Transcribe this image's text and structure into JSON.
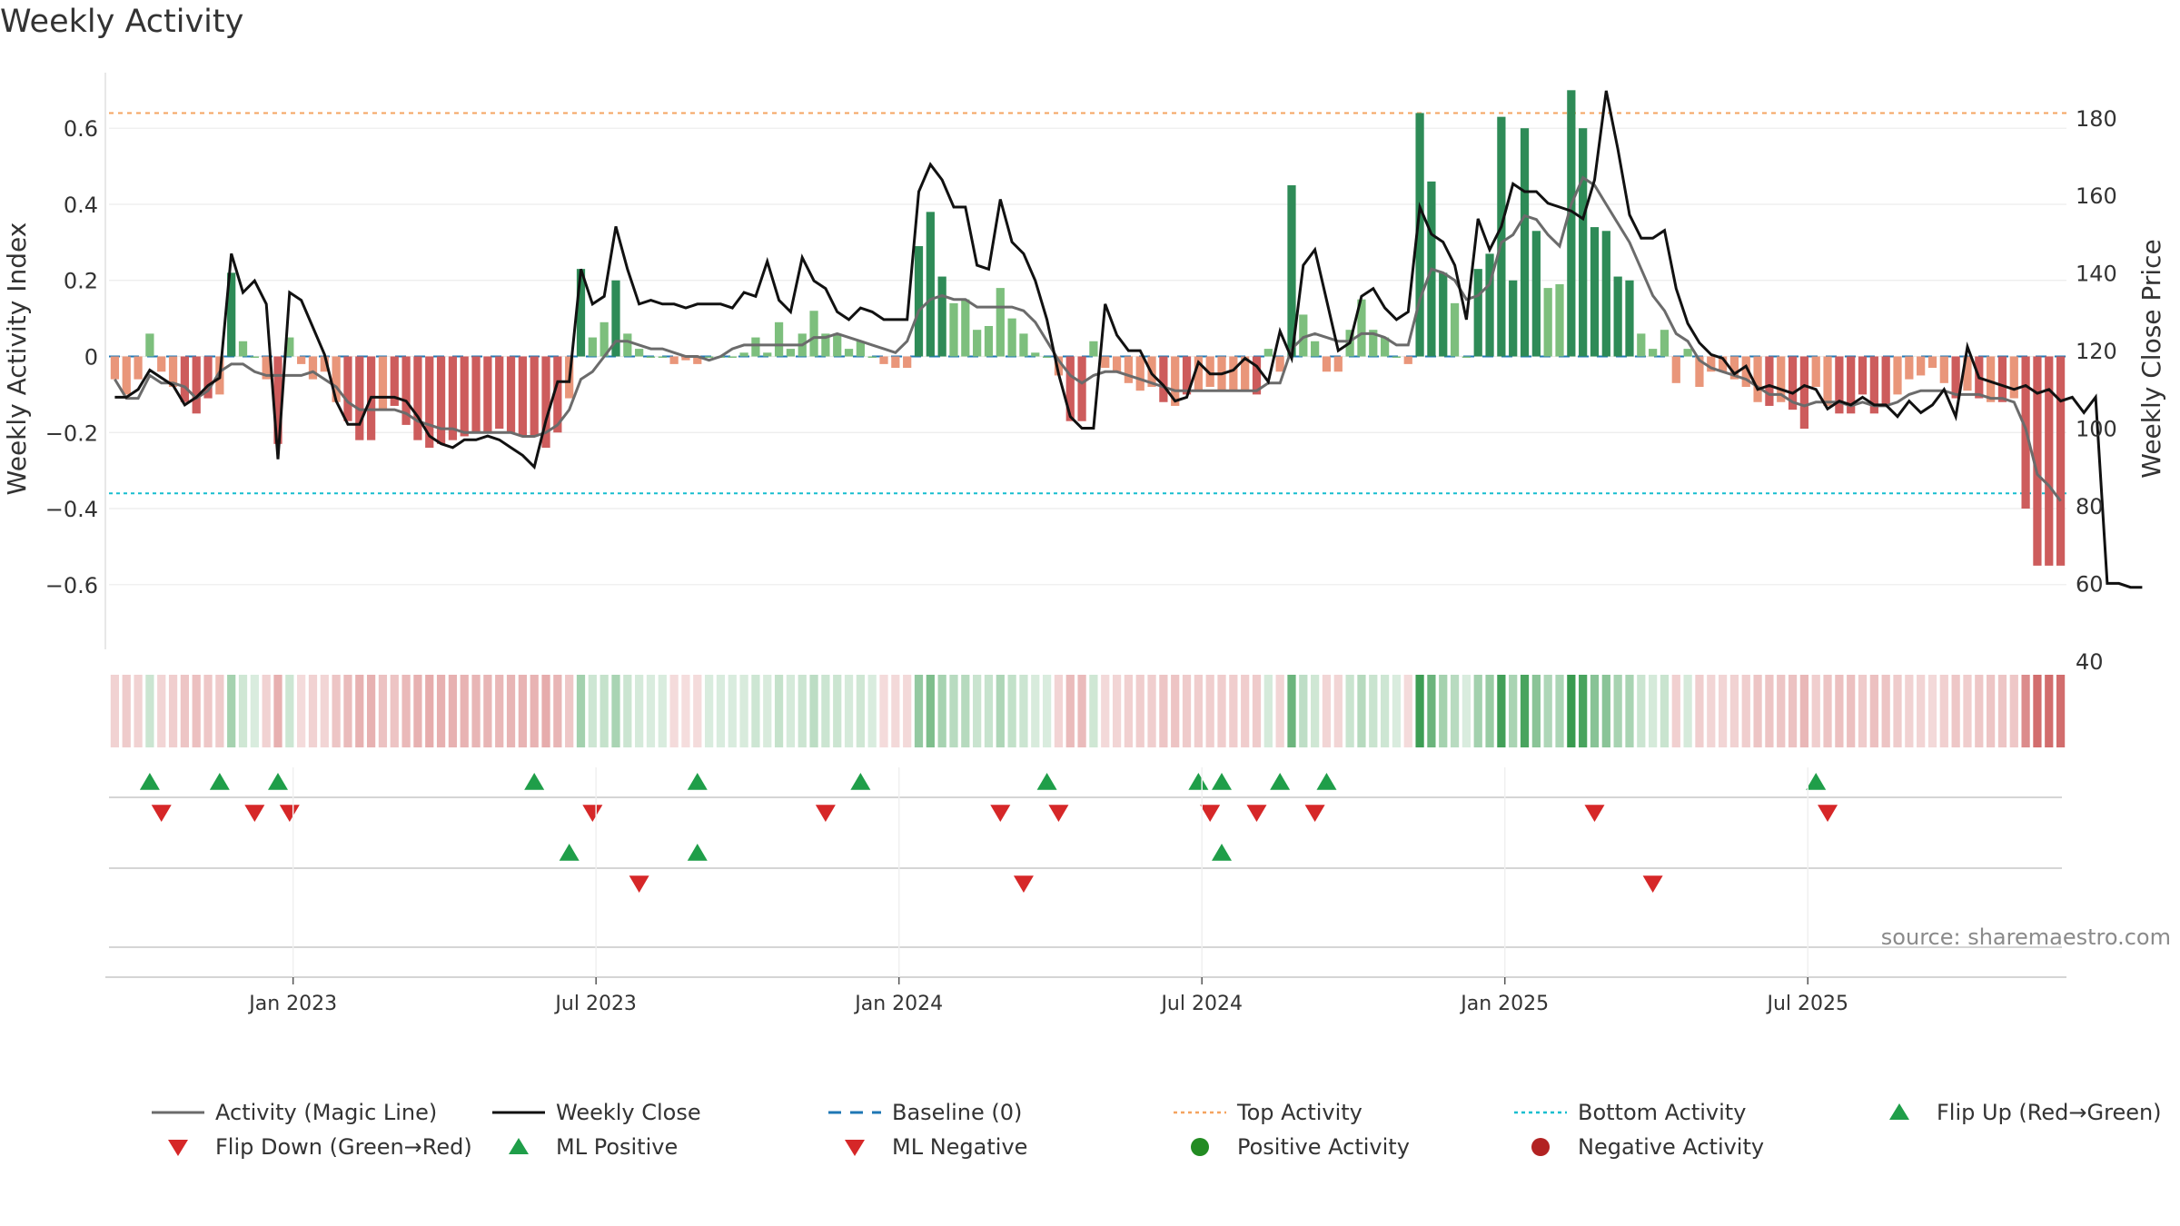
{
  "title": "Weekly Activity",
  "source": "source: sharemaestro.com",
  "colors": {
    "pos_dark": "#2e8b57",
    "pos_light": "#7dbf7d",
    "neg_dark": "#cd5c5c",
    "neg_light": "#e9967a",
    "magic_line": "#6b6b6b",
    "close_line": "#111111",
    "baseline": "#1f77b4",
    "top_line": "#f4a460",
    "bottom_line": "#17becf",
    "flip_up": "#1f9e49",
    "flip_down": "#d62728"
  },
  "chart_data": {
    "type": "bar+line",
    "title": "Weekly Activity",
    "ylabel_left": "Weekly Activity Index",
    "ylabel_right": "Weekly Close Price",
    "ylim_left": [
      -0.77,
      0.77
    ],
    "ylim_right": [
      43,
      194
    ],
    "yticks_left": [
      0.6,
      0.4,
      0.2,
      0,
      -0.2,
      -0.4,
      -0.6
    ],
    "ytick_labels_left": [
      "0.6",
      "0.4",
      "0.2",
      "0",
      "−0.2",
      "−0.4",
      "−0.6"
    ],
    "yticks_right": [
      180,
      160,
      140,
      120,
      100,
      80,
      60,
      40
    ],
    "ytick_labels_right": [
      "180",
      "160",
      "140",
      "120",
      "100",
      "80",
      "60",
      "40"
    ],
    "xtick_labels": [
      "Jan 2023",
      "Jul 2023",
      "Jan 2024",
      "Jul 2024",
      "Jan 2025",
      "Jul 2025"
    ],
    "xtick_weeks": [
      15.3,
      41.3,
      67.3,
      93.3,
      119.3,
      145.3
    ],
    "top_activity": 0.64,
    "bottom_activity": -0.36,
    "activity": [
      -0.06,
      -0.1,
      -0.06,
      0.06,
      -0.04,
      -0.08,
      -0.12,
      -0.15,
      -0.11,
      -0.1,
      0.22,
      0.04,
      0.0,
      -0.06,
      -0.23,
      0.05,
      -0.02,
      -0.06,
      -0.04,
      -0.12,
      -0.17,
      -0.22,
      -0.22,
      -0.14,
      -0.13,
      -0.18,
      -0.22,
      -0.24,
      -0.23,
      -0.22,
      -0.21,
      -0.2,
      -0.2,
      -0.19,
      -0.2,
      -0.21,
      -0.21,
      -0.24,
      -0.2,
      -0.11,
      0.23,
      0.05,
      0.09,
      0.2,
      0.06,
      0.02,
      0.0,
      0.0,
      -0.02,
      -0.01,
      -0.02,
      0.0,
      0.0,
      0.0,
      0.01,
      0.05,
      0.01,
      0.09,
      0.02,
      0.06,
      0.12,
      0.06,
      0.06,
      0.02,
      0.04,
      0.0,
      -0.02,
      -0.03,
      -0.03,
      0.29,
      0.38,
      0.21,
      0.14,
      0.15,
      0.07,
      0.08,
      0.18,
      0.1,
      0.06,
      0.01,
      0.0,
      -0.05,
      -0.17,
      -0.17,
      0.04,
      -0.03,
      -0.04,
      -0.07,
      -0.09,
      -0.08,
      -0.12,
      -0.13,
      -0.1,
      -0.09,
      -0.08,
      -0.09,
      -0.09,
      -0.09,
      -0.1,
      0.02,
      -0.04,
      0.45,
      0.11,
      0.04,
      -0.04,
      -0.04,
      0.07,
      0.15,
      0.07,
      0.05,
      0.0,
      -0.02,
      0.64,
      0.46,
      0.22,
      0.14,
      0.0,
      0.23,
      0.27,
      0.63,
      0.2,
      0.6,
      0.33,
      0.18,
      0.19,
      0.7,
      0.6,
      0.34,
      0.33,
      0.21,
      0.2,
      0.06,
      0.02,
      0.07,
      -0.07,
      0.02,
      -0.08,
      -0.04,
      -0.04,
      -0.06,
      -0.08,
      -0.12,
      -0.13,
      -0.12,
      -0.14,
      -0.19,
      -0.08,
      -0.13,
      -0.15,
      -0.15,
      -0.1,
      -0.15,
      -0.13,
      -0.1,
      -0.06,
      -0.05,
      -0.03,
      -0.07,
      -0.11,
      -0.09,
      -0.11,
      -0.12,
      -0.12,
      -0.11,
      -0.4,
      -0.55,
      -0.55,
      -0.55
    ],
    "magic_line": [
      -0.06,
      -0.11,
      -0.11,
      -0.05,
      -0.07,
      -0.07,
      -0.08,
      -0.11,
      -0.09,
      -0.04,
      -0.02,
      -0.02,
      -0.04,
      -0.05,
      -0.05,
      -0.05,
      -0.05,
      -0.04,
      -0.06,
      -0.08,
      -0.12,
      -0.14,
      -0.14,
      -0.14,
      -0.14,
      -0.15,
      -0.17,
      -0.18,
      -0.19,
      -0.19,
      -0.2,
      -0.2,
      -0.2,
      -0.2,
      -0.2,
      -0.21,
      -0.21,
      -0.2,
      -0.18,
      -0.14,
      -0.06,
      -0.04,
      0.0,
      0.04,
      0.04,
      0.03,
      0.02,
      0.02,
      0.01,
      0.0,
      0.0,
      -0.01,
      0.0,
      0.02,
      0.03,
      0.03,
      0.03,
      0.03,
      0.03,
      0.03,
      0.05,
      0.05,
      0.06,
      0.05,
      0.04,
      0.03,
      0.02,
      0.01,
      0.04,
      0.12,
      0.15,
      0.16,
      0.15,
      0.15,
      0.13,
      0.13,
      0.13,
      0.13,
      0.12,
      0.09,
      0.04,
      -0.01,
      -0.05,
      -0.07,
      -0.05,
      -0.04,
      -0.04,
      -0.05,
      -0.06,
      -0.07,
      -0.08,
      -0.09,
      -0.09,
      -0.09,
      -0.09,
      -0.09,
      -0.09,
      -0.09,
      -0.09,
      -0.07,
      -0.07,
      0.02,
      0.05,
      0.06,
      0.05,
      0.04,
      0.04,
      0.06,
      0.06,
      0.05,
      0.03,
      0.03,
      0.15,
      0.23,
      0.22,
      0.2,
      0.15,
      0.16,
      0.19,
      0.3,
      0.32,
      0.37,
      0.36,
      0.32,
      0.29,
      0.4,
      0.47,
      0.45,
      0.4,
      0.35,
      0.3,
      0.23,
      0.16,
      0.12,
      0.06,
      0.04,
      -0.01,
      -0.03,
      -0.04,
      -0.05,
      -0.06,
      -0.08,
      -0.1,
      -0.1,
      -0.12,
      -0.13,
      -0.12,
      -0.12,
      -0.12,
      -0.13,
      -0.12,
      -0.13,
      -0.13,
      -0.12,
      -0.1,
      -0.09,
      -0.09,
      -0.09,
      -0.1,
      -0.1,
      -0.1,
      -0.11,
      -0.11,
      -0.12,
      -0.19,
      -0.31,
      -0.34,
      -0.38
    ],
    "weekly_close": [
      108,
      108,
      110,
      115,
      113,
      111,
      106,
      108,
      111,
      113,
      145,
      135,
      138,
      132,
      92,
      135,
      133,
      126,
      119,
      107,
      101,
      101,
      108,
      108,
      108,
      107,
      103,
      98,
      96,
      95,
      97,
      97,
      98,
      97,
      95,
      93,
      90,
      102,
      112,
      112,
      141,
      132,
      134,
      152,
      141,
      132,
      133,
      132,
      132,
      131,
      132,
      132,
      132,
      131,
      135,
      134,
      143,
      133,
      130,
      144,
      138,
      136,
      130,
      128,
      131,
      130,
      128,
      128,
      128,
      161,
      168,
      164,
      157,
      157,
      142,
      141,
      159,
      148,
      145,
      138,
      128,
      114,
      103,
      100,
      100,
      132,
      124,
      120,
      120,
      114,
      111,
      107,
      108,
      117,
      114,
      114,
      115,
      118,
      116,
      112,
      125,
      118,
      142,
      146,
      133,
      120,
      122,
      134,
      136,
      131,
      128,
      130,
      157,
      150,
      148,
      142,
      128,
      154,
      146,
      152,
      163,
      161,
      161,
      158,
      157,
      156,
      154,
      164,
      187,
      172,
      155,
      149,
      149,
      151,
      136,
      127,
      122,
      119,
      118,
      114,
      116,
      110,
      111,
      110,
      109,
      111,
      110,
      105,
      107,
      106,
      108,
      106,
      106,
      103,
      107,
      104,
      106,
      110,
      103,
      121,
      113,
      112,
      111,
      110,
      111,
      109,
      110,
      107,
      108,
      104,
      108,
      60,
      60,
      59,
      59
    ],
    "strength_band": [
      -0.06,
      -0.1,
      -0.06,
      0.06,
      -0.04,
      -0.08,
      -0.12,
      -0.15,
      -0.11,
      -0.1,
      0.22,
      0.04,
      0.0,
      -0.06,
      -0.23,
      0.05,
      -0.02,
      -0.06,
      -0.04,
      -0.12,
      -0.17,
      -0.22,
      -0.22,
      -0.14,
      -0.13,
      -0.18,
      -0.22,
      -0.24,
      -0.23,
      -0.22,
      -0.21,
      -0.2,
      -0.2,
      -0.19,
      -0.2,
      -0.21,
      -0.21,
      -0.24,
      -0.2,
      -0.11,
      0.23,
      0.05,
      0.09,
      0.2,
      0.06,
      0.02,
      0.0,
      0.0,
      -0.02,
      -0.01,
      -0.02,
      0.0,
      0.0,
      0.0,
      0.01,
      0.05,
      0.01,
      0.09,
      0.02,
      0.06,
      0.12,
      0.06,
      0.06,
      0.02,
      0.04,
      0.0,
      -0.02,
      -0.03,
      -0.03,
      0.29,
      0.38,
      0.21,
      0.14,
      0.15,
      0.07,
      0.08,
      0.18,
      0.1,
      0.06,
      0.01,
      0.0,
      -0.05,
      -0.17,
      -0.17,
      0.04,
      -0.03,
      -0.04,
      -0.07,
      -0.09,
      -0.08,
      -0.12,
      -0.13,
      -0.1,
      -0.09,
      -0.08,
      -0.09,
      -0.09,
      -0.09,
      -0.1,
      0.02,
      -0.04,
      0.45,
      0.11,
      0.04,
      -0.04,
      -0.04,
      0.07,
      0.15,
      0.07,
      0.05,
      0.0,
      -0.02,
      0.64,
      0.46,
      0.22,
      0.14,
      0.0,
      0.23,
      0.27,
      0.63,
      0.2,
      0.6,
      0.33,
      0.18,
      0.19,
      0.7,
      0.6,
      0.34,
      0.33,
      0.21,
      0.2,
      0.06,
      0.02,
      0.07,
      -0.07,
      0.02,
      -0.08,
      -0.04,
      -0.04,
      -0.06,
      -0.08,
      -0.12,
      -0.13,
      -0.12,
      -0.14,
      -0.19,
      -0.08,
      -0.13,
      -0.15,
      -0.15,
      -0.1,
      -0.15,
      -0.13,
      -0.1,
      -0.06,
      -0.05,
      -0.03,
      -0.07,
      -0.11,
      -0.09,
      -0.11,
      -0.12,
      -0.12,
      -0.11,
      -0.4,
      -0.55,
      -0.55,
      -0.55
    ],
    "flip_up_weeks": [
      3,
      9,
      14,
      36,
      50,
      64,
      80,
      93,
      95,
      100,
      104,
      146
    ],
    "flip_down_weeks": [
      4,
      12,
      15,
      41,
      61,
      76,
      81,
      94,
      98,
      103,
      127,
      147
    ],
    "ml_positive_weeks": [
      39,
      50,
      95
    ],
    "ml_negative_weeks": [
      45,
      78,
      132
    ]
  },
  "legend": [
    {
      "label": "Activity (Magic Line)",
      "symbol": "line",
      "color": "#6b6b6b"
    },
    {
      "label": "Weekly Close",
      "symbol": "line",
      "color": "#111111"
    },
    {
      "label": "Baseline (0)",
      "symbol": "dash",
      "color": "#1f77b4"
    },
    {
      "label": "Top Activity",
      "symbol": "dot-line",
      "color": "#f4a460"
    },
    {
      "label": "Bottom Activity",
      "symbol": "dot-line",
      "color": "#17becf"
    },
    {
      "label": "Flip Up (Red→Green)",
      "symbol": "tri-up",
      "color": "#1f9e49"
    },
    {
      "label": "Flip Down (Green→Red)",
      "symbol": "tri-down",
      "color": "#d62728"
    },
    {
      "label": "ML Positive",
      "symbol": "tri-up",
      "color": "#1f9e49"
    },
    {
      "label": "ML Negative",
      "symbol": "tri-down",
      "color": "#d62728"
    },
    {
      "label": "Positive Activity",
      "symbol": "circle",
      "color": "#228b22"
    },
    {
      "label": "Negative Activity",
      "symbol": "circle",
      "color": "#b22222"
    }
  ]
}
